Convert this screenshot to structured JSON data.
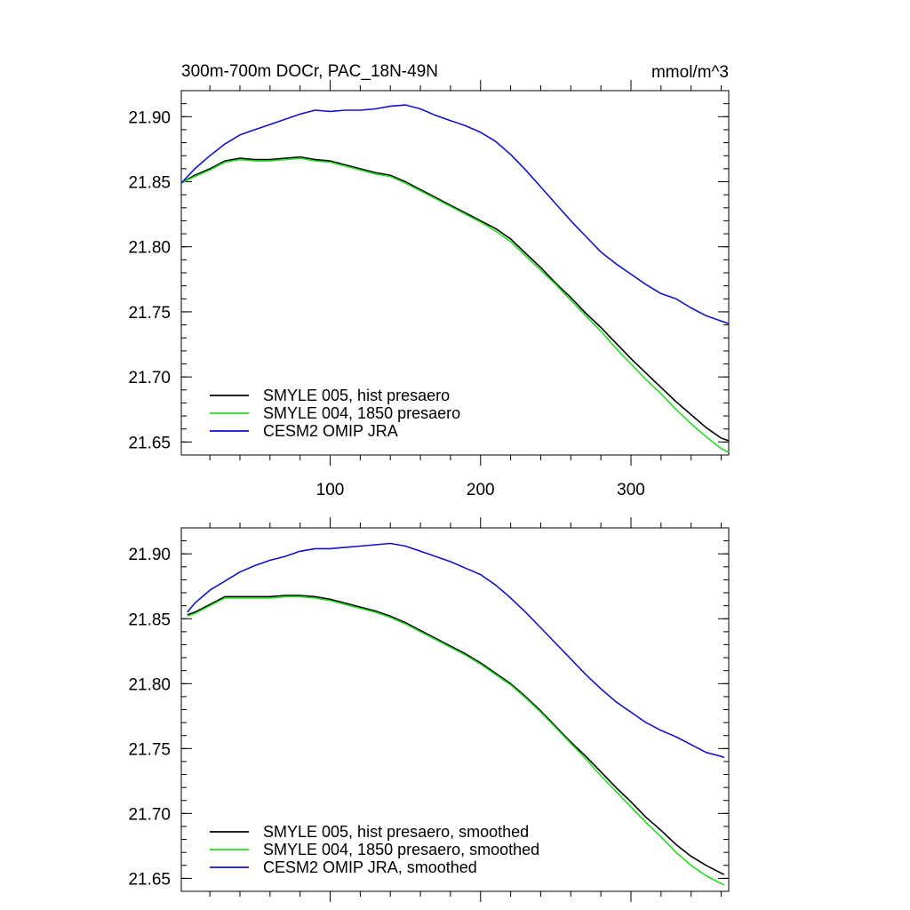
{
  "chart_data": [
    {
      "type": "line",
      "title": "300m-700m DOCr, PAC_18N-49N",
      "units": "mmol/m^3",
      "xlim": [
        1,
        365
      ],
      "ylim": [
        21.64,
        21.92
      ],
      "x_ticks": [
        100,
        200,
        300
      ],
      "y_ticks": [
        21.65,
        21.7,
        21.75,
        21.8,
        21.85,
        21.9
      ],
      "y_tick_labels": [
        "21.65",
        "21.70",
        "21.75",
        "21.80",
        "21.85",
        "21.90"
      ],
      "x_tick_labels": [
        "100",
        "200",
        "300"
      ],
      "legend_position": "bottom-left",
      "series": [
        {
          "name": "SMYLE 005, hist presaero",
          "color": "#000000",
          "x": [
            1,
            10,
            20,
            30,
            40,
            50,
            60,
            70,
            80,
            90,
            100,
            110,
            120,
            130,
            140,
            150,
            160,
            170,
            180,
            190,
            200,
            210,
            220,
            230,
            240,
            250,
            260,
            270,
            280,
            290,
            300,
            310,
            320,
            330,
            340,
            350,
            360,
            365
          ],
          "y": [
            21.849,
            21.855,
            21.86,
            21.866,
            21.868,
            21.867,
            21.867,
            21.868,
            21.869,
            21.867,
            21.866,
            21.863,
            21.86,
            21.857,
            21.855,
            21.85,
            21.844,
            21.838,
            21.832,
            21.826,
            21.82,
            21.814,
            21.806,
            21.795,
            21.784,
            21.772,
            21.761,
            21.749,
            21.738,
            21.726,
            21.714,
            21.703,
            21.692,
            21.681,
            21.671,
            21.661,
            21.653,
            21.651
          ]
        },
        {
          "name": "SMYLE 004, 1850 presaero",
          "color": "#22dd22",
          "x": [
            1,
            10,
            20,
            30,
            40,
            50,
            60,
            70,
            80,
            90,
            100,
            110,
            120,
            130,
            140,
            150,
            160,
            170,
            180,
            190,
            200,
            210,
            220,
            230,
            240,
            250,
            260,
            270,
            280,
            290,
            300,
            310,
            320,
            330,
            340,
            350,
            360,
            365
          ],
          "y": [
            21.849,
            21.854,
            21.859,
            21.865,
            21.867,
            21.866,
            21.866,
            21.867,
            21.868,
            21.866,
            21.865,
            21.862,
            21.859,
            21.856,
            21.854,
            21.849,
            21.843,
            21.837,
            21.831,
            21.825,
            21.819,
            21.812,
            21.804,
            21.793,
            21.782,
            21.771,
            21.759,
            21.747,
            21.735,
            21.722,
            21.71,
            21.698,
            21.687,
            21.675,
            21.664,
            21.654,
            21.645,
            21.642
          ]
        },
        {
          "name": "CESM2 OMIP JRA",
          "color": "#1111cc",
          "x": [
            1,
            10,
            20,
            30,
            40,
            50,
            60,
            70,
            80,
            90,
            100,
            110,
            120,
            130,
            140,
            150,
            160,
            170,
            180,
            190,
            200,
            210,
            220,
            230,
            240,
            250,
            260,
            270,
            280,
            290,
            300,
            310,
            320,
            330,
            340,
            350,
            360,
            365
          ],
          "y": [
            21.849,
            21.86,
            21.87,
            21.879,
            21.886,
            21.89,
            21.894,
            21.898,
            21.902,
            21.905,
            21.904,
            21.905,
            21.905,
            21.906,
            21.908,
            21.909,
            21.906,
            21.901,
            21.897,
            21.893,
            21.888,
            21.881,
            21.871,
            21.859,
            21.846,
            21.833,
            21.82,
            21.808,
            21.796,
            21.787,
            21.779,
            21.771,
            21.764,
            21.76,
            21.753,
            21.747,
            21.743,
            21.741
          ]
        }
      ]
    },
    {
      "type": "line",
      "title": "",
      "xlim": [
        1,
        365
      ],
      "ylim": [
        21.64,
        21.92
      ],
      "x_ticks": [
        100,
        200,
        300
      ],
      "y_ticks": [
        21.65,
        21.7,
        21.75,
        21.8,
        21.85,
        21.9
      ],
      "y_tick_labels": [
        "21.65",
        "21.70",
        "21.75",
        "21.80",
        "21.85",
        "21.90"
      ],
      "legend_position": "bottom-left",
      "series": [
        {
          "name": "SMYLE 005, hist presaero, smoothed",
          "color": "#000000",
          "x": [
            5,
            10,
            20,
            30,
            40,
            50,
            60,
            70,
            80,
            90,
            100,
            110,
            120,
            130,
            140,
            150,
            160,
            170,
            180,
            190,
            200,
            210,
            220,
            230,
            240,
            250,
            260,
            270,
            280,
            290,
            300,
            310,
            320,
            330,
            340,
            350,
            360,
            362
          ],
          "y": [
            21.853,
            21.855,
            21.861,
            21.867,
            21.867,
            21.867,
            21.867,
            21.868,
            21.868,
            21.867,
            21.865,
            21.862,
            21.859,
            21.856,
            21.852,
            21.847,
            21.841,
            21.835,
            21.829,
            21.823,
            21.816,
            21.808,
            21.8,
            21.79,
            21.779,
            21.767,
            21.755,
            21.744,
            21.732,
            21.72,
            21.709,
            21.697,
            21.687,
            21.676,
            21.667,
            21.66,
            21.654,
            21.653
          ]
        },
        {
          "name": "SMYLE 004, 1850 presaero, smoothed",
          "color": "#22dd22",
          "x": [
            5,
            10,
            20,
            30,
            40,
            50,
            60,
            70,
            80,
            90,
            100,
            110,
            120,
            130,
            140,
            150,
            160,
            170,
            180,
            190,
            200,
            210,
            220,
            230,
            240,
            250,
            260,
            270,
            280,
            290,
            300,
            310,
            320,
            330,
            340,
            350,
            360,
            362
          ],
          "y": [
            21.852,
            21.854,
            21.86,
            21.866,
            21.866,
            21.866,
            21.866,
            21.867,
            21.867,
            21.866,
            21.864,
            21.861,
            21.858,
            21.855,
            21.851,
            21.846,
            21.84,
            21.834,
            21.828,
            21.822,
            21.815,
            21.807,
            21.799,
            21.789,
            21.778,
            21.766,
            21.754,
            21.742,
            21.729,
            21.717,
            21.705,
            21.693,
            21.682,
            21.67,
            21.66,
            21.652,
            21.646,
            21.645
          ]
        },
        {
          "name": "CESM2 OMIP JRA, smoothed",
          "color": "#1111cc",
          "x": [
            5,
            10,
            20,
            30,
            40,
            50,
            60,
            70,
            80,
            90,
            100,
            110,
            120,
            130,
            140,
            150,
            160,
            170,
            180,
            190,
            200,
            210,
            220,
            230,
            240,
            250,
            260,
            270,
            280,
            290,
            300,
            310,
            320,
            330,
            340,
            350,
            360,
            362
          ],
          "y": [
            21.855,
            21.862,
            21.872,
            21.879,
            21.886,
            21.891,
            21.895,
            21.898,
            21.902,
            21.904,
            21.904,
            21.905,
            21.906,
            21.907,
            21.908,
            21.906,
            21.902,
            21.898,
            21.894,
            21.889,
            21.884,
            21.876,
            21.866,
            21.855,
            21.843,
            21.831,
            21.819,
            21.807,
            21.796,
            21.786,
            21.778,
            21.77,
            21.764,
            21.759,
            21.753,
            21.747,
            21.744,
            21.743
          ]
        }
      ]
    }
  ]
}
